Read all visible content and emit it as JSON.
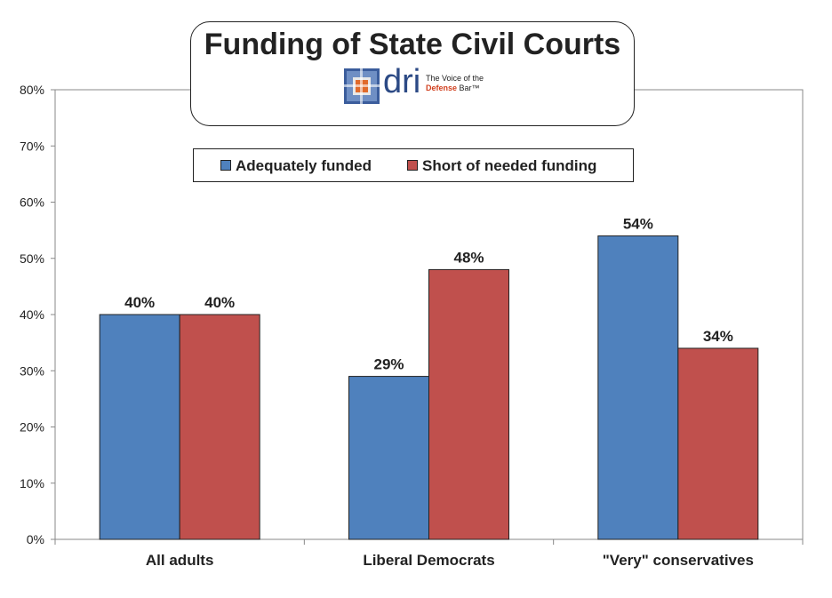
{
  "title": "Funding of State Civil Courts",
  "logo": {
    "name": "dri",
    "tagline_line1": "The Voice of the",
    "tagline_accent": "Defense",
    "tagline_line2": "Bar™"
  },
  "chart_data": {
    "type": "bar",
    "categories": [
      "All adults",
      "Liberal Democrats",
      "\"Very\" conservatives"
    ],
    "series": [
      {
        "name": "Adequately funded",
        "values": [
          40,
          29,
          54
        ],
        "color": "#4f81bd"
      },
      {
        "name": "Short of needed funding",
        "values": [
          40,
          48,
          34
        ],
        "color": "#c0504d"
      }
    ],
    "data_labels": [
      [
        "40%",
        "29%",
        "54%"
      ],
      [
        "40%",
        "48%",
        "34%"
      ]
    ],
    "ylim": [
      0,
      80
    ],
    "yticks": [
      0,
      10,
      20,
      30,
      40,
      50,
      60,
      70,
      80
    ],
    "ytick_labels": [
      "0%",
      "10%",
      "20%",
      "30%",
      "40%",
      "50%",
      "60%",
      "70%",
      "80%"
    ],
    "grid": false,
    "legend_position": "top"
  }
}
